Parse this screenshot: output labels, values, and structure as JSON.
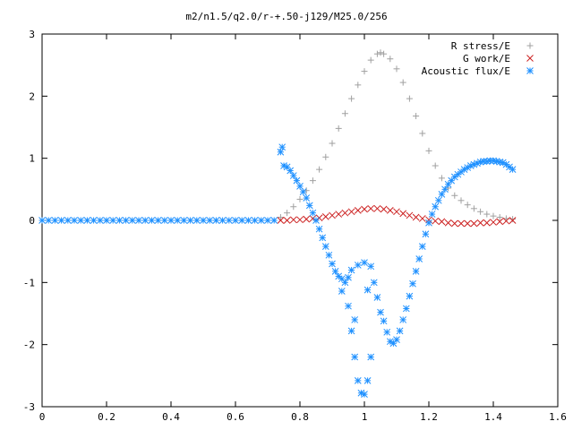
{
  "chart_data": {
    "type": "scatter",
    "title": "m2/n1.5/q2.0/r-+.50-j129/M25.0/256",
    "xlabel": "",
    "ylabel": "",
    "xlim": [
      0,
      1.6
    ],
    "ylim": [
      -3,
      3
    ],
    "xticks": [
      "0",
      "0.2",
      "0.4",
      "0.6",
      "0.8",
      "1",
      "1.2",
      "1.4",
      "1.6"
    ],
    "yticks": [
      "3",
      "2",
      "1",
      "0",
      "-1",
      "-2",
      "-3"
    ],
    "grid": false,
    "legend_position": "top-right",
    "series": [
      {
        "name": "R stress/E",
        "marker": "plus",
        "color": "#a0a0a0",
        "points": [
          [
            0.74,
            0.05
          ],
          [
            0.76,
            0.12
          ],
          [
            0.78,
            0.22
          ],
          [
            0.8,
            0.34
          ],
          [
            0.82,
            0.48
          ],
          [
            0.84,
            0.64
          ],
          [
            0.86,
            0.82
          ],
          [
            0.88,
            1.02
          ],
          [
            0.9,
            1.24
          ],
          [
            0.92,
            1.48
          ],
          [
            0.94,
            1.72
          ],
          [
            0.96,
            1.96
          ],
          [
            0.98,
            2.18
          ],
          [
            1.0,
            2.4
          ],
          [
            1.02,
            2.58
          ],
          [
            1.04,
            2.68
          ],
          [
            1.05,
            2.7
          ],
          [
            1.06,
            2.68
          ],
          [
            1.08,
            2.6
          ],
          [
            1.1,
            2.44
          ],
          [
            1.12,
            2.22
          ],
          [
            1.14,
            1.96
          ],
          [
            1.16,
            1.68
          ],
          [
            1.18,
            1.4
          ],
          [
            1.2,
            1.12
          ],
          [
            1.22,
            0.88
          ],
          [
            1.24,
            0.68
          ],
          [
            1.26,
            0.52
          ],
          [
            1.28,
            0.4
          ],
          [
            1.3,
            0.32
          ],
          [
            1.32,
            0.25
          ],
          [
            1.34,
            0.19
          ],
          [
            1.36,
            0.14
          ],
          [
            1.38,
            0.1
          ],
          [
            1.4,
            0.07
          ],
          [
            1.42,
            0.05
          ],
          [
            1.44,
            0.03
          ],
          [
            1.46,
            0.02
          ]
        ]
      },
      {
        "name": "G work/E",
        "marker": "cross",
        "color": "#cc2020",
        "points": [
          [
            0.74,
            0.0
          ],
          [
            0.76,
            0.0
          ],
          [
            0.78,
            0.01
          ],
          [
            0.8,
            0.01
          ],
          [
            0.82,
            0.02
          ],
          [
            0.84,
            0.03
          ],
          [
            0.86,
            0.04
          ],
          [
            0.88,
            0.06
          ],
          [
            0.9,
            0.08
          ],
          [
            0.92,
            0.1
          ],
          [
            0.94,
            0.12
          ],
          [
            0.96,
            0.14
          ],
          [
            0.98,
            0.16
          ],
          [
            1.0,
            0.18
          ],
          [
            1.02,
            0.19
          ],
          [
            1.04,
            0.19
          ],
          [
            1.06,
            0.18
          ],
          [
            1.08,
            0.16
          ],
          [
            1.1,
            0.14
          ],
          [
            1.12,
            0.11
          ],
          [
            1.14,
            0.08
          ],
          [
            1.16,
            0.05
          ],
          [
            1.18,
            0.03
          ],
          [
            1.2,
            0.01
          ],
          [
            1.22,
            -0.01
          ],
          [
            1.24,
            -0.02
          ],
          [
            1.26,
            -0.04
          ],
          [
            1.28,
            -0.05
          ],
          [
            1.3,
            -0.05
          ],
          [
            1.32,
            -0.05
          ],
          [
            1.34,
            -0.05
          ],
          [
            1.36,
            -0.04
          ],
          [
            1.38,
            -0.04
          ],
          [
            1.4,
            -0.03
          ],
          [
            1.42,
            -0.02
          ],
          [
            1.44,
            -0.01
          ],
          [
            1.46,
            0.0
          ]
        ]
      },
      {
        "name": "Acoustic flux/E",
        "marker": "star",
        "color": "#1e90ff",
        "points": [
          [
            0.0,
            0
          ],
          [
            0.02,
            0
          ],
          [
            0.04,
            0
          ],
          [
            0.06,
            0
          ],
          [
            0.08,
            0
          ],
          [
            0.1,
            0
          ],
          [
            0.12,
            0
          ],
          [
            0.14,
            0
          ],
          [
            0.16,
            0
          ],
          [
            0.18,
            0
          ],
          [
            0.2,
            0
          ],
          [
            0.22,
            0
          ],
          [
            0.24,
            0
          ],
          [
            0.26,
            0
          ],
          [
            0.28,
            0
          ],
          [
            0.3,
            0
          ],
          [
            0.32,
            0
          ],
          [
            0.34,
            0
          ],
          [
            0.36,
            0
          ],
          [
            0.38,
            0
          ],
          [
            0.4,
            0
          ],
          [
            0.42,
            0
          ],
          [
            0.44,
            0
          ],
          [
            0.46,
            0
          ],
          [
            0.48,
            0
          ],
          [
            0.5,
            0
          ],
          [
            0.52,
            0
          ],
          [
            0.54,
            0
          ],
          [
            0.56,
            0
          ],
          [
            0.58,
            0
          ],
          [
            0.6,
            0
          ],
          [
            0.62,
            0
          ],
          [
            0.64,
            0
          ],
          [
            0.66,
            0
          ],
          [
            0.68,
            0
          ],
          [
            0.7,
            0
          ],
          [
            0.72,
            0
          ],
          [
            0.74,
            1.1
          ],
          [
            0.745,
            1.18
          ],
          [
            0.75,
            0.88
          ],
          [
            0.76,
            0.86
          ],
          [
            0.77,
            0.8
          ],
          [
            0.78,
            0.72
          ],
          [
            0.79,
            0.64
          ],
          [
            0.8,
            0.55
          ],
          [
            0.81,
            0.46
          ],
          [
            0.82,
            0.36
          ],
          [
            0.83,
            0.24
          ],
          [
            0.84,
            0.12
          ],
          [
            0.85,
            0.0
          ],
          [
            0.86,
            -0.14
          ],
          [
            0.87,
            -0.28
          ],
          [
            0.88,
            -0.42
          ],
          [
            0.89,
            -0.56
          ],
          [
            0.9,
            -0.7
          ],
          [
            0.91,
            -0.82
          ],
          [
            0.92,
            -0.9
          ],
          [
            0.93,
            -0.94
          ],
          [
            0.94,
            -1.0
          ],
          [
            0.95,
            -0.92
          ],
          [
            0.96,
            -0.8
          ],
          [
            0.98,
            -0.72
          ],
          [
            1.0,
            -0.68
          ],
          [
            1.02,
            -0.74
          ],
          [
            0.93,
            -1.14
          ],
          [
            0.95,
            -1.38
          ],
          [
            0.96,
            -1.78
          ],
          [
            0.97,
            -2.2
          ],
          [
            0.98,
            -2.58
          ],
          [
            0.99,
            -2.78
          ],
          [
            1.0,
            -2.8
          ],
          [
            1.01,
            -2.58
          ],
          [
            1.02,
            -2.2
          ],
          [
            0.97,
            -1.6
          ],
          [
            1.01,
            -1.12
          ],
          [
            1.03,
            -1.0
          ],
          [
            1.04,
            -1.24
          ],
          [
            1.05,
            -1.48
          ],
          [
            1.06,
            -1.62
          ],
          [
            1.07,
            -1.8
          ],
          [
            1.08,
            -1.95
          ],
          [
            1.09,
            -1.98
          ],
          [
            1.1,
            -1.92
          ],
          [
            1.11,
            -1.78
          ],
          [
            1.12,
            -1.6
          ],
          [
            1.13,
            -1.42
          ],
          [
            1.14,
            -1.22
          ],
          [
            1.15,
            -1.02
          ],
          [
            1.16,
            -0.82
          ],
          [
            1.17,
            -0.62
          ],
          [
            1.18,
            -0.42
          ],
          [
            1.19,
            -0.22
          ],
          [
            1.2,
            -0.04
          ],
          [
            1.21,
            0.1
          ],
          [
            1.22,
            0.22
          ],
          [
            1.23,
            0.32
          ],
          [
            1.24,
            0.42
          ],
          [
            1.25,
            0.5
          ],
          [
            1.26,
            0.58
          ],
          [
            1.27,
            0.64
          ],
          [
            1.28,
            0.7
          ],
          [
            1.29,
            0.74
          ],
          [
            1.3,
            0.78
          ],
          [
            1.31,
            0.82
          ],
          [
            1.32,
            0.85
          ],
          [
            1.33,
            0.88
          ],
          [
            1.34,
            0.9
          ],
          [
            1.35,
            0.92
          ],
          [
            1.36,
            0.94
          ],
          [
            1.37,
            0.95
          ],
          [
            1.38,
            0.95
          ],
          [
            1.39,
            0.96
          ],
          [
            1.4,
            0.96
          ],
          [
            1.41,
            0.95
          ],
          [
            1.42,
            0.94
          ],
          [
            1.43,
            0.93
          ],
          [
            1.44,
            0.9
          ],
          [
            1.45,
            0.86
          ],
          [
            1.46,
            0.82
          ]
        ]
      }
    ]
  }
}
